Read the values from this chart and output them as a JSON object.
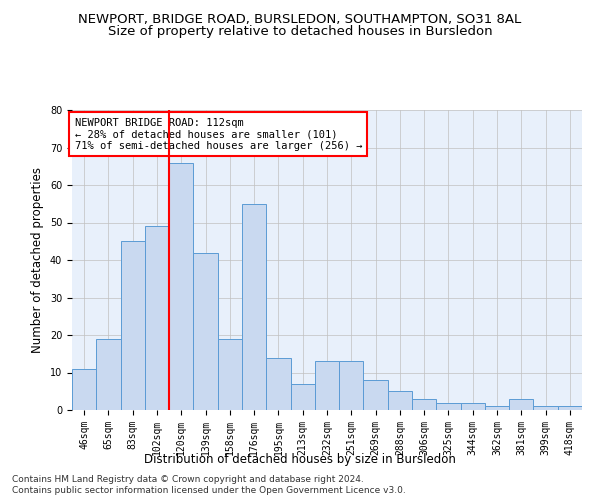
{
  "title": "NEWPORT, BRIDGE ROAD, BURSLEDON, SOUTHAMPTON, SO31 8AL",
  "subtitle": "Size of property relative to detached houses in Bursledon",
  "xlabel": "Distribution of detached houses by size in Bursledon",
  "ylabel": "Number of detached properties",
  "categories": [
    "46sqm",
    "65sqm",
    "83sqm",
    "102sqm",
    "120sqm",
    "139sqm",
    "158sqm",
    "176sqm",
    "195sqm",
    "213sqm",
    "232sqm",
    "251sqm",
    "269sqm",
    "288sqm",
    "306sqm",
    "325sqm",
    "344sqm",
    "362sqm",
    "381sqm",
    "399sqm",
    "418sqm"
  ],
  "values": [
    11,
    19,
    45,
    49,
    66,
    42,
    19,
    55,
    14,
    7,
    13,
    13,
    8,
    5,
    3,
    2,
    2,
    1,
    3,
    1,
    1
  ],
  "bar_color": "#c9d9f0",
  "bar_edge_color": "#5b9bd5",
  "red_line_x": 3.5,
  "annotation_line1": "NEWPORT BRIDGE ROAD: 112sqm",
  "annotation_line2": "← 28% of detached houses are smaller (101)",
  "annotation_line3": "71% of semi-detached houses are larger (256) →",
  "annotation_box_color": "white",
  "annotation_box_edge_color": "red",
  "ylim": [
    0,
    80
  ],
  "yticks": [
    0,
    10,
    20,
    30,
    40,
    50,
    60,
    70,
    80
  ],
  "grid_color": "#c0c0c0",
  "background_color": "#e8f0fb",
  "footer1": "Contains HM Land Registry data © Crown copyright and database right 2024.",
  "footer2": "Contains public sector information licensed under the Open Government Licence v3.0.",
  "title_fontsize": 9.5,
  "subtitle_fontsize": 9.5,
  "xlabel_fontsize": 8.5,
  "ylabel_fontsize": 8.5,
  "tick_fontsize": 7,
  "annotation_fontsize": 7.5,
  "footer_fontsize": 6.5
}
